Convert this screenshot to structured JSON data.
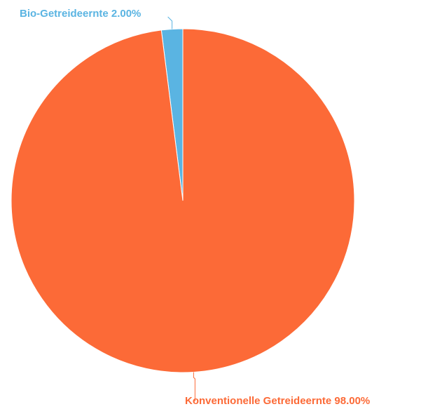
{
  "chart_data": {
    "type": "pie",
    "slices": [
      {
        "label": "Bio-Getreideernte",
        "value": 2.0,
        "display": "Bio-Getreideernte 2.00%",
        "color": "#5ab4e2"
      },
      {
        "label": "Konventionelle Getreideernte",
        "value": 98.0,
        "display": "Konventionelle Getreideernte 98.00%",
        "color": "#fc6a37"
      }
    ],
    "title": "",
    "legend": "none"
  }
}
